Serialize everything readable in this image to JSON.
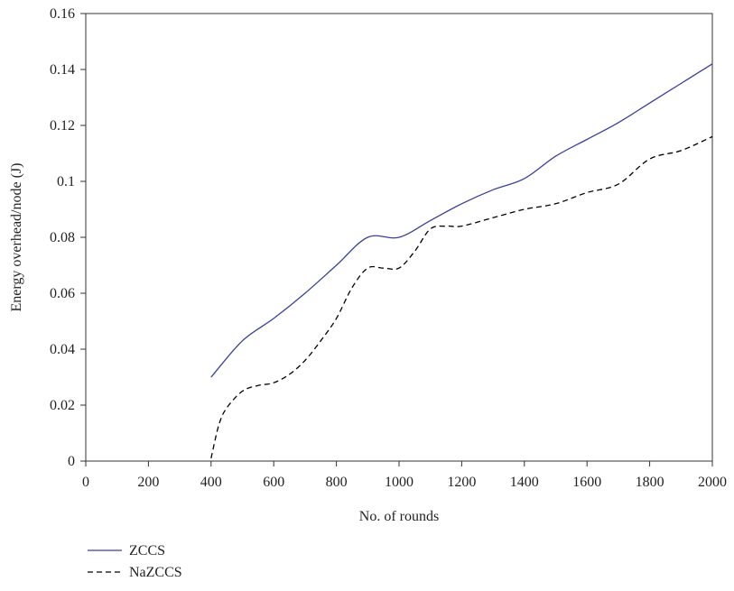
{
  "chart_data": {
    "type": "line",
    "title": "",
    "xlabel": "No. of rounds",
    "ylabel": "Energy overhead/node (J)",
    "xlim": [
      0,
      2000
    ],
    "ylim": [
      0,
      0.16
    ],
    "x_ticks": [
      0,
      200,
      400,
      600,
      800,
      1000,
      1200,
      1400,
      1600,
      1800,
      2000
    ],
    "y_ticks": [
      0,
      0.02,
      0.04,
      0.06,
      0.08,
      0.1,
      0.12,
      0.14,
      0.16
    ],
    "y_tick_labels": [
      "0",
      "0.02",
      "0.04",
      "0.06",
      "0.08",
      "0.1",
      "0.12",
      "0.14",
      "0.16"
    ],
    "grid": false,
    "legend_position": "bottom-left, below plot",
    "series": [
      {
        "name": "ZCCS",
        "color": "#3a3f9e",
        "dash": "solid",
        "x": [
          400,
          500,
          600,
          700,
          800,
          900,
          1000,
          1100,
          1200,
          1300,
          1400,
          1500,
          1600,
          1700,
          1800,
          1900,
          2000
        ],
        "y": [
          0.03,
          0.043,
          0.051,
          0.06,
          0.07,
          0.08,
          0.08,
          0.086,
          0.092,
          0.097,
          0.101,
          0.109,
          0.115,
          0.121,
          0.128,
          0.135,
          0.142
        ]
      },
      {
        "name": "NaZCCS",
        "color": "#000000",
        "dash": "dashed",
        "x": [
          400,
          425,
          450,
          500,
          550,
          600,
          650,
          700,
          750,
          800,
          850,
          900,
          950,
          1000,
          1050,
          1100,
          1150,
          1200,
          1300,
          1400,
          1500,
          1600,
          1700,
          1800,
          1900,
          2000
        ],
        "y": [
          0.001,
          0.013,
          0.019,
          0.025,
          0.027,
          0.028,
          0.031,
          0.036,
          0.043,
          0.051,
          0.062,
          0.069,
          0.069,
          0.069,
          0.075,
          0.083,
          0.084,
          0.084,
          0.087,
          0.09,
          0.092,
          0.096,
          0.099,
          0.108,
          0.111,
          0.116
        ]
      }
    ]
  }
}
